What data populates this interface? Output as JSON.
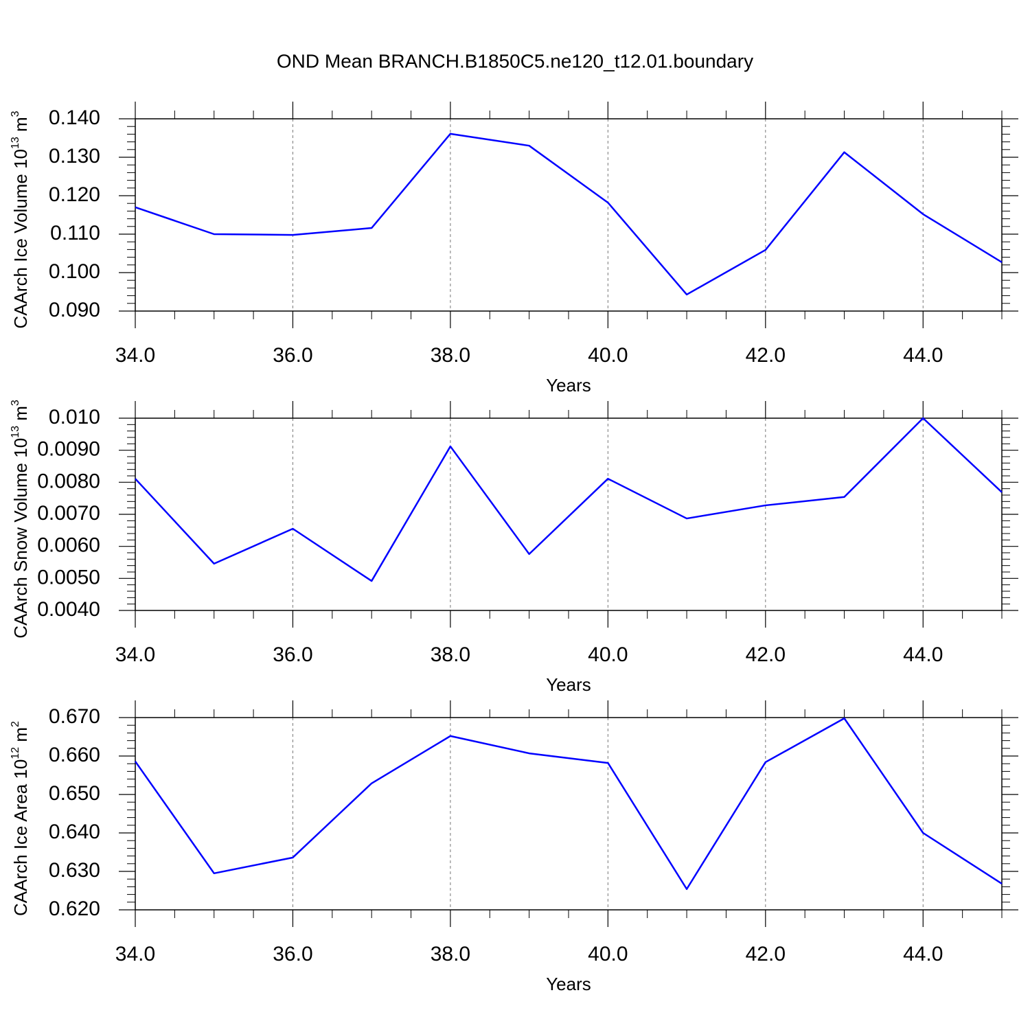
{
  "title": "OND Mean BRANCH.B1850C5.ne120_t12.01.boundary",
  "chart_data": [
    {
      "type": "line",
      "xlabel": "Years",
      "ylabel": [
        "CAArch Ice Volume 10",
        "13",
        " m",
        "3"
      ],
      "x": [
        34,
        35,
        36,
        37,
        38,
        39,
        40,
        41,
        42,
        43,
        44,
        45
      ],
      "series": [
        {
          "color": "#0000ff",
          "values": [
            0.117,
            0.11,
            0.1098,
            0.1116,
            0.1361,
            0.133,
            0.1182,
            0.0943,
            0.1059,
            0.1313,
            0.1152,
            0.1027
          ]
        }
      ],
      "xlim": [
        34,
        45
      ],
      "xticks": [
        {
          "value": 34,
          "label": "34.0"
        },
        {
          "value": 36,
          "label": "36.0"
        },
        {
          "value": 38,
          "label": "38.0"
        },
        {
          "value": 40,
          "label": "40.0"
        },
        {
          "value": 42,
          "label": "42.0"
        },
        {
          "value": 44,
          "label": "44.0"
        }
      ],
      "ylim": [
        0.09,
        0.14
      ],
      "yticks": [
        {
          "value": 0.09,
          "label": "0.090"
        },
        {
          "value": 0.1,
          "label": "0.100"
        },
        {
          "value": 0.11,
          "label": "0.110"
        },
        {
          "value": 0.12,
          "label": "0.120"
        },
        {
          "value": 0.13,
          "label": "0.130"
        },
        {
          "value": 0.14,
          "label": "0.140"
        }
      ],
      "grid": true
    },
    {
      "type": "line",
      "xlabel": "Years",
      "ylabel": [
        "CAArch Snow Volume 10",
        "13",
        " m",
        "3"
      ],
      "x": [
        34,
        35,
        36,
        37,
        38,
        39,
        40,
        41,
        42,
        43,
        44,
        45
      ],
      "series": [
        {
          "color": "#0000ff",
          "values": [
            0.00811,
            0.00546,
            0.00655,
            0.00492,
            0.00912,
            0.00576,
            0.00811,
            0.00687,
            0.00728,
            0.00754,
            0.01,
            0.00769
          ]
        }
      ],
      "xlim": [
        34,
        45
      ],
      "xticks": [
        {
          "value": 34,
          "label": "34.0"
        },
        {
          "value": 36,
          "label": "36.0"
        },
        {
          "value": 38,
          "label": "38.0"
        },
        {
          "value": 40,
          "label": "40.0"
        },
        {
          "value": 42,
          "label": "42.0"
        },
        {
          "value": 44,
          "label": "44.0"
        }
      ],
      "ylim": [
        0.004,
        0.01
      ],
      "yticks": [
        {
          "value": 0.004,
          "label": "0.0040"
        },
        {
          "value": 0.005,
          "label": "0.0050"
        },
        {
          "value": 0.006,
          "label": "0.0060"
        },
        {
          "value": 0.007,
          "label": "0.0070"
        },
        {
          "value": 0.008,
          "label": "0.0080"
        },
        {
          "value": 0.009,
          "label": "0.0090"
        },
        {
          "value": 0.01,
          "label": "0.010"
        }
      ],
      "grid": true
    },
    {
      "type": "line",
      "xlabel": "Years",
      "ylabel": [
        "CAArch Ice Area 10",
        "12",
        " m",
        "2"
      ],
      "x": [
        34,
        35,
        36,
        37,
        38,
        39,
        40,
        41,
        42,
        43,
        44,
        45
      ],
      "series": [
        {
          "color": "#0000ff",
          "values": [
            0.6586,
            0.6295,
            0.6336,
            0.6529,
            0.6652,
            0.6607,
            0.6582,
            0.6254,
            0.6584,
            0.6698,
            0.64,
            0.6268
          ]
        }
      ],
      "xlim": [
        34,
        45
      ],
      "xticks": [
        {
          "value": 34,
          "label": "34.0"
        },
        {
          "value": 36,
          "label": "36.0"
        },
        {
          "value": 38,
          "label": "38.0"
        },
        {
          "value": 40,
          "label": "40.0"
        },
        {
          "value": 42,
          "label": "42.0"
        },
        {
          "value": 44,
          "label": "44.0"
        }
      ],
      "ylim": [
        0.62,
        0.67
      ],
      "yticks": [
        {
          "value": 0.62,
          "label": "0.620"
        },
        {
          "value": 0.63,
          "label": "0.630"
        },
        {
          "value": 0.64,
          "label": "0.640"
        },
        {
          "value": 0.65,
          "label": "0.650"
        },
        {
          "value": 0.66,
          "label": "0.660"
        },
        {
          "value": 0.67,
          "label": "0.670"
        }
      ],
      "grid": true
    }
  ]
}
